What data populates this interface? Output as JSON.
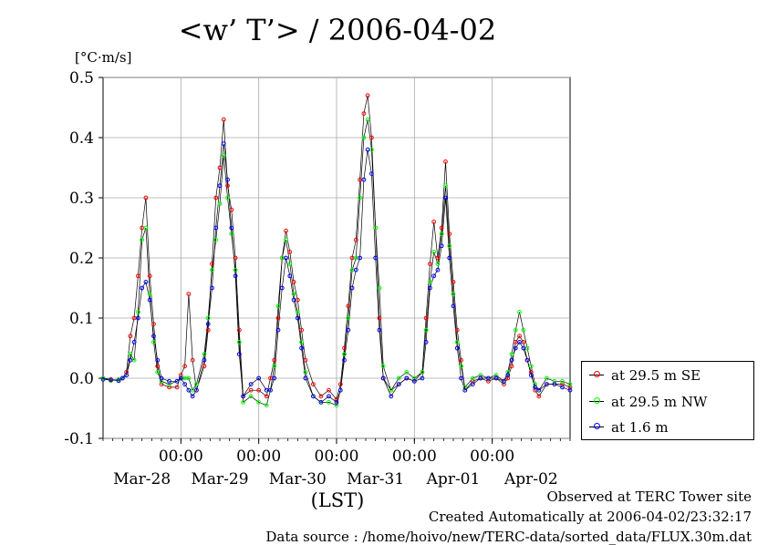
{
  "title": "<w’ T’> / 2006-04-02",
  "ylabel": "[°C·m/s]",
  "xlabel": "(LST)",
  "footer": {
    "line1": "Observed at TERC Tower site",
    "line2": "Created Automatically at 2006-04-02/23:32:17",
    "line3": "Data source : /home/hoivo/new/TERC-data/sorted_data/FLUX.30m.dat"
  },
  "colors": {
    "se": "#ff0000",
    "nw": "#00ff00",
    "low": "#0000ff",
    "line": "#000000"
  },
  "legend": [
    {
      "label": "at 29.5 m SE",
      "color": "#ff0000"
    },
    {
      "label": "at 29.5 m NW",
      "color": "#00ff00"
    },
    {
      "label": "at 1.6 m",
      "color": "#0000ff"
    }
  ],
  "chart_data": {
    "type": "line",
    "xlim": [
      0,
      6
    ],
    "ylim": [
      -0.1,
      0.5
    ],
    "yticks": [
      -0.1,
      0.0,
      0.1,
      0.2,
      0.3,
      0.4,
      0.5
    ],
    "ytick_labels": [
      "-0.1",
      "0.0",
      "0.1",
      "0.2",
      "0.3",
      "0.4",
      "0.5"
    ],
    "xtick_time_labels": [
      "00:00",
      "00:00",
      "00:00",
      "00:00",
      "00:00"
    ],
    "xtick_date_labels": [
      "Mar-28",
      "Mar-29",
      "Mar-30",
      "Mar-31",
      "Apr-01",
      "Apr-02"
    ],
    "grid": true,
    "legend_position": "right",
    "series": [
      {
        "name": "at 29.5 m SE",
        "color": "#ff0000",
        "points": [
          [
            0.0,
            0.0
          ],
          [
            0.1,
            -0.002
          ],
          [
            0.2,
            -0.004
          ],
          [
            0.25,
            0.0
          ],
          [
            0.3,
            0.01
          ],
          [
            0.35,
            0.07
          ],
          [
            0.4,
            0.1
          ],
          [
            0.45,
            0.17
          ],
          [
            0.5,
            0.25
          ],
          [
            0.55,
            0.3
          ],
          [
            0.6,
            0.17
          ],
          [
            0.65,
            0.09
          ],
          [
            0.7,
            0.02
          ],
          [
            0.75,
            -0.01
          ],
          [
            0.85,
            -0.015
          ],
          [
            0.95,
            -0.015
          ],
          [
            1.0,
            0.005
          ],
          [
            1.05,
            0.02
          ],
          [
            1.1,
            0.14
          ],
          [
            1.15,
            0.03
          ],
          [
            1.2,
            -0.02
          ],
          [
            1.3,
            0.02
          ],
          [
            1.35,
            0.08
          ],
          [
            1.4,
            0.19
          ],
          [
            1.45,
            0.3
          ],
          [
            1.5,
            0.35
          ],
          [
            1.55,
            0.43
          ],
          [
            1.6,
            0.32
          ],
          [
            1.65,
            0.28
          ],
          [
            1.7,
            0.2
          ],
          [
            1.75,
            0.08
          ],
          [
            1.8,
            -0.03
          ],
          [
            1.9,
            -0.02
          ],
          [
            2.0,
            -0.02
          ],
          [
            2.1,
            -0.03
          ],
          [
            2.15,
            0.0
          ],
          [
            2.2,
            0.03
          ],
          [
            2.25,
            0.1
          ],
          [
            2.3,
            0.2
          ],
          [
            2.35,
            0.245
          ],
          [
            2.4,
            0.21
          ],
          [
            2.45,
            0.16
          ],
          [
            2.5,
            0.13
          ],
          [
            2.55,
            0.08
          ],
          [
            2.6,
            0.03
          ],
          [
            2.7,
            -0.01
          ],
          [
            2.8,
            -0.03
          ],
          [
            2.9,
            -0.02
          ],
          [
            3.0,
            -0.035
          ],
          [
            3.05,
            -0.01
          ],
          [
            3.1,
            0.05
          ],
          [
            3.15,
            0.12
          ],
          [
            3.2,
            0.2
          ],
          [
            3.25,
            0.23
          ],
          [
            3.3,
            0.33
          ],
          [
            3.35,
            0.44
          ],
          [
            3.4,
            0.47
          ],
          [
            3.45,
            0.4
          ],
          [
            3.5,
            0.25
          ],
          [
            3.55,
            0.1
          ],
          [
            3.6,
            0.0
          ],
          [
            3.7,
            -0.02
          ],
          [
            3.8,
            -0.01
          ],
          [
            3.9,
            0.0
          ],
          [
            4.0,
            -0.005
          ],
          [
            4.1,
            0.01
          ],
          [
            4.15,
            0.1
          ],
          [
            4.2,
            0.19
          ],
          [
            4.25,
            0.26
          ],
          [
            4.3,
            0.2
          ],
          [
            4.35,
            0.25
          ],
          [
            4.4,
            0.36
          ],
          [
            4.45,
            0.24
          ],
          [
            4.5,
            0.16
          ],
          [
            4.55,
            0.08
          ],
          [
            4.6,
            0.03
          ],
          [
            4.65,
            -0.02
          ],
          [
            4.75,
            -0.005
          ],
          [
            4.85,
            0.0
          ],
          [
            4.95,
            -0.005
          ],
          [
            5.05,
            0.0
          ],
          [
            5.15,
            -0.01
          ],
          [
            5.2,
            0.0
          ],
          [
            5.25,
            0.02
          ],
          [
            5.3,
            0.06
          ],
          [
            5.35,
            0.07
          ],
          [
            5.4,
            0.06
          ],
          [
            5.45,
            0.03
          ],
          [
            5.5,
            0.01
          ],
          [
            5.55,
            -0.02
          ],
          [
            5.6,
            -0.03
          ],
          [
            5.7,
            -0.01
          ],
          [
            5.8,
            -0.01
          ],
          [
            5.9,
            -0.01
          ],
          [
            6.0,
            -0.015
          ]
        ]
      },
      {
        "name": "at 29.5 m NW",
        "color": "#00ff00",
        "points": [
          [
            0.0,
            0.0
          ],
          [
            0.1,
            -0.004
          ],
          [
            0.2,
            -0.002
          ],
          [
            0.25,
            0.0
          ],
          [
            0.3,
            0.005
          ],
          [
            0.35,
            0.04
          ],
          [
            0.4,
            0.03
          ],
          [
            0.45,
            0.11
          ],
          [
            0.5,
            0.23
          ],
          [
            0.55,
            0.25
          ],
          [
            0.6,
            0.14
          ],
          [
            0.65,
            0.06
          ],
          [
            0.7,
            0.01
          ],
          [
            0.75,
            -0.005
          ],
          [
            0.85,
            -0.01
          ],
          [
            0.95,
            -0.005
          ],
          [
            1.0,
            0.0
          ],
          [
            1.05,
            0.0
          ],
          [
            1.1,
            0.0
          ],
          [
            1.15,
            -0.02
          ],
          [
            1.2,
            -0.01
          ],
          [
            1.3,
            0.04
          ],
          [
            1.35,
            0.1
          ],
          [
            1.4,
            0.18
          ],
          [
            1.45,
            0.23
          ],
          [
            1.5,
            0.29
          ],
          [
            1.55,
            0.37
          ],
          [
            1.6,
            0.3
          ],
          [
            1.65,
            0.24
          ],
          [
            1.7,
            0.18
          ],
          [
            1.75,
            0.06
          ],
          [
            1.8,
            -0.04
          ],
          [
            1.9,
            -0.03
          ],
          [
            2.0,
            -0.04
          ],
          [
            2.1,
            -0.045
          ],
          [
            2.15,
            -0.02
          ],
          [
            2.2,
            0.02
          ],
          [
            2.25,
            0.12
          ],
          [
            2.3,
            0.2
          ],
          [
            2.35,
            0.23
          ],
          [
            2.4,
            0.19
          ],
          [
            2.45,
            0.14
          ],
          [
            2.5,
            0.11
          ],
          [
            2.55,
            0.06
          ],
          [
            2.6,
            0.01
          ],
          [
            2.7,
            -0.03
          ],
          [
            2.8,
            -0.04
          ],
          [
            2.9,
            -0.04
          ],
          [
            3.0,
            -0.045
          ],
          [
            3.05,
            -0.02
          ],
          [
            3.1,
            0.04
          ],
          [
            3.15,
            0.1
          ],
          [
            3.2,
            0.18
          ],
          [
            3.25,
            0.2
          ],
          [
            3.3,
            0.3
          ],
          [
            3.35,
            0.4
          ],
          [
            3.4,
            0.43
          ],
          [
            3.45,
            0.38
          ],
          [
            3.5,
            0.25
          ],
          [
            3.55,
            0.15
          ],
          [
            3.6,
            0.02
          ],
          [
            3.7,
            -0.02
          ],
          [
            3.8,
            0.0
          ],
          [
            3.9,
            0.01
          ],
          [
            4.0,
            0.0
          ],
          [
            4.1,
            0.01
          ],
          [
            4.15,
            0.08
          ],
          [
            4.2,
            0.16
          ],
          [
            4.25,
            0.21
          ],
          [
            4.3,
            0.19
          ],
          [
            4.35,
            0.24
          ],
          [
            4.4,
            0.32
          ],
          [
            4.45,
            0.22
          ],
          [
            4.5,
            0.14
          ],
          [
            4.55,
            0.06
          ],
          [
            4.6,
            0.02
          ],
          [
            4.65,
            -0.015
          ],
          [
            4.75,
            0.0
          ],
          [
            4.85,
            0.005
          ],
          [
            4.95,
            0.0
          ],
          [
            5.05,
            0.005
          ],
          [
            5.15,
            -0.005
          ],
          [
            5.2,
            0.01
          ],
          [
            5.25,
            0.04
          ],
          [
            5.3,
            0.08
          ],
          [
            5.35,
            0.11
          ],
          [
            5.4,
            0.08
          ],
          [
            5.45,
            0.05
          ],
          [
            5.5,
            0.02
          ],
          [
            5.55,
            -0.01
          ],
          [
            5.6,
            -0.02
          ],
          [
            5.7,
            0.0
          ],
          [
            5.8,
            -0.005
          ],
          [
            5.9,
            -0.005
          ],
          [
            6.0,
            -0.01
          ]
        ]
      },
      {
        "name": "at 1.6 m",
        "color": "#0000ff",
        "points": [
          [
            0.0,
            -0.002
          ],
          [
            0.1,
            -0.003
          ],
          [
            0.2,
            -0.004
          ],
          [
            0.25,
            0.0
          ],
          [
            0.3,
            0.005
          ],
          [
            0.35,
            0.03
          ],
          [
            0.4,
            0.06
          ],
          [
            0.45,
            0.1
          ],
          [
            0.5,
            0.15
          ],
          [
            0.55,
            0.16
          ],
          [
            0.6,
            0.13
          ],
          [
            0.65,
            0.07
          ],
          [
            0.7,
            0.03
          ],
          [
            0.75,
            0.0
          ],
          [
            0.85,
            -0.005
          ],
          [
            0.95,
            -0.005
          ],
          [
            1.0,
            0.0
          ],
          [
            1.05,
            -0.01
          ],
          [
            1.1,
            -0.02
          ],
          [
            1.15,
            -0.03
          ],
          [
            1.2,
            -0.02
          ],
          [
            1.3,
            0.03
          ],
          [
            1.35,
            0.09
          ],
          [
            1.4,
            0.15
          ],
          [
            1.45,
            0.25
          ],
          [
            1.5,
            0.32
          ],
          [
            1.55,
            0.39
          ],
          [
            1.6,
            0.33
          ],
          [
            1.65,
            0.25
          ],
          [
            1.7,
            0.17
          ],
          [
            1.75,
            0.04
          ],
          [
            1.8,
            -0.03
          ],
          [
            1.9,
            -0.01
          ],
          [
            2.0,
            0.0
          ],
          [
            2.1,
            -0.02
          ],
          [
            2.15,
            -0.02
          ],
          [
            2.2,
            0.0
          ],
          [
            2.25,
            0.08
          ],
          [
            2.3,
            0.15
          ],
          [
            2.35,
            0.2
          ],
          [
            2.4,
            0.17
          ],
          [
            2.45,
            0.13
          ],
          [
            2.5,
            0.1
          ],
          [
            2.55,
            0.05
          ],
          [
            2.6,
            0.0
          ],
          [
            2.7,
            -0.03
          ],
          [
            2.8,
            -0.04
          ],
          [
            2.9,
            -0.03
          ],
          [
            3.0,
            -0.04
          ],
          [
            3.05,
            -0.02
          ],
          [
            3.1,
            0.03
          ],
          [
            3.15,
            0.08
          ],
          [
            3.2,
            0.15
          ],
          [
            3.25,
            0.18
          ],
          [
            3.3,
            0.2
          ],
          [
            3.35,
            0.33
          ],
          [
            3.4,
            0.38
          ],
          [
            3.45,
            0.34
          ],
          [
            3.5,
            0.2
          ],
          [
            3.55,
            0.08
          ],
          [
            3.6,
            0.0
          ],
          [
            3.7,
            -0.03
          ],
          [
            3.8,
            -0.01
          ],
          [
            3.9,
            0.0
          ],
          [
            4.0,
            -0.005
          ],
          [
            4.1,
            0.0
          ],
          [
            4.15,
            0.06
          ],
          [
            4.2,
            0.15
          ],
          [
            4.25,
            0.17
          ],
          [
            4.3,
            0.18
          ],
          [
            4.35,
            0.22
          ],
          [
            4.4,
            0.3
          ],
          [
            4.45,
            0.2
          ],
          [
            4.5,
            0.12
          ],
          [
            4.55,
            0.05
          ],
          [
            4.6,
            0.0
          ],
          [
            4.65,
            -0.02
          ],
          [
            4.75,
            -0.01
          ],
          [
            4.85,
            0.0
          ],
          [
            4.95,
            0.0
          ],
          [
            5.05,
            0.0
          ],
          [
            5.15,
            -0.005
          ],
          [
            5.2,
            0.005
          ],
          [
            5.25,
            0.03
          ],
          [
            5.3,
            0.05
          ],
          [
            5.35,
            0.06
          ],
          [
            5.4,
            0.05
          ],
          [
            5.45,
            0.03
          ],
          [
            5.5,
            0.005
          ],
          [
            5.55,
            -0.015
          ],
          [
            5.6,
            -0.02
          ],
          [
            5.7,
            -0.01
          ],
          [
            5.8,
            -0.01
          ],
          [
            5.9,
            -0.015
          ],
          [
            6.0,
            -0.02
          ]
        ]
      }
    ]
  }
}
